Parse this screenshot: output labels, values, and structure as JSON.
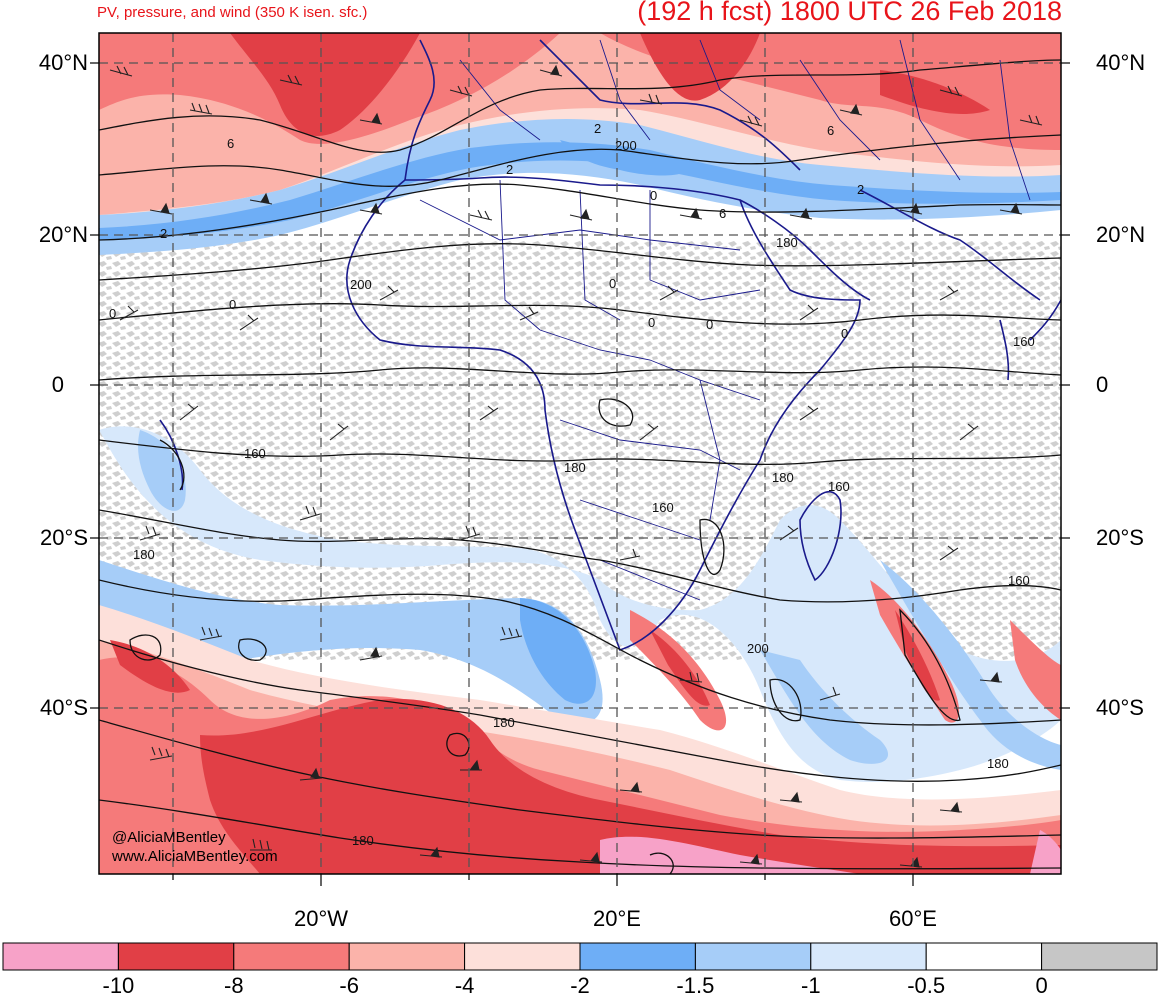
{
  "header": {
    "subtitle": "PV, pressure, and wind (350 K isen. sfc.)",
    "title": "(192 h fcst) 1800 UTC 26 Feb 2018"
  },
  "axes": {
    "lat_labels": [
      "40°N",
      "20°N",
      "0",
      "20°S",
      "40°S"
    ],
    "lon_labels": [
      "20°W",
      "20°E",
      "60°E"
    ]
  },
  "contour_labels": [
    "6",
    "6",
    "2",
    "2",
    "200",
    "2",
    "0",
    "6",
    "2",
    "180",
    "200",
    "0",
    "0",
    "0",
    "0",
    "0",
    "0",
    "160",
    "160",
    "180",
    "180",
    "160",
    "160",
    "200",
    "160",
    "180",
    "180",
    "180",
    "180"
  ],
  "credits": {
    "handle": "@AliciaMBentley",
    "site": "www.AliciaMBentley.com"
  },
  "colorbar": {
    "labels": [
      "-10",
      "-8",
      "-6",
      "-4",
      "-2",
      "-1.5",
      "-1",
      "-0.5",
      "0"
    ],
    "colors": [
      "#f7a2c8",
      "#e13f46",
      "#f57a7a",
      "#fbb3aa",
      "#fde0da",
      "#6eaef6",
      "#a6cdf8",
      "#d7e8fb",
      "#ffffff",
      "#c6c6c6"
    ]
  },
  "map_colors": {
    "pv_strong_neg": "#e13f46",
    "pv_mid_neg": "#f57a7a",
    "pv_weak_neg": "#fbb3aa",
    "pv_weakest_neg": "#fde0da",
    "pv_pink": "#f7a2c8",
    "blue_1": "#6eaef6",
    "blue_2": "#a6cdf8",
    "blue_3": "#d7e8fb",
    "gray_positive": "#c6c6c6",
    "coastline": "#1a1a8c"
  }
}
